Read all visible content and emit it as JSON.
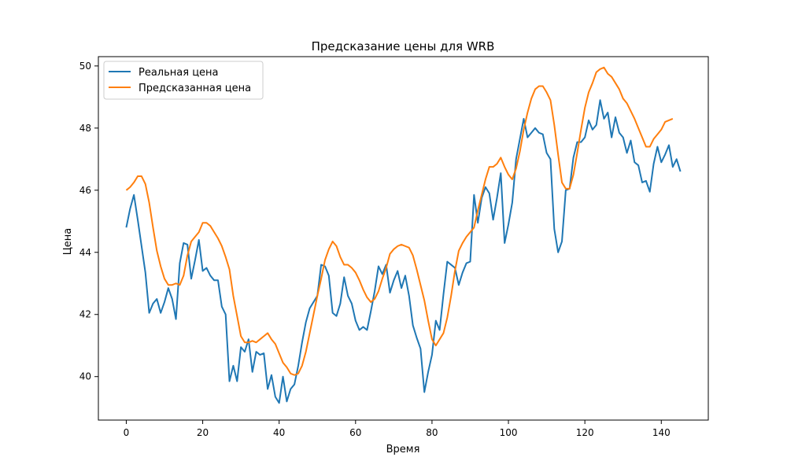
{
  "chart_data": {
    "type": "line",
    "title": "Предсказание цены для WRB",
    "xlabel": "Время",
    "ylabel": "Цена",
    "xlim": [
      -7.3,
      152.3
    ],
    "ylim": [
      38.6,
      50.3
    ],
    "xticks": [
      0,
      20,
      40,
      60,
      80,
      100,
      120,
      140
    ],
    "yticks": [
      40,
      42,
      44,
      46,
      48,
      50
    ],
    "grid": false,
    "legend_position": "top-left",
    "series": [
      {
        "name": "Реальная цена",
        "color": "#1f77b4",
        "values": [
          44.8,
          45.4,
          45.85,
          45.05,
          44.2,
          43.35,
          42.05,
          42.35,
          42.5,
          42.05,
          42.4,
          42.85,
          42.5,
          41.85,
          43.65,
          44.3,
          44.25,
          43.15,
          43.75,
          44.4,
          43.4,
          43.5,
          43.25,
          43.1,
          43.1,
          42.25,
          42.0,
          39.85,
          40.35,
          39.85,
          40.95,
          40.8,
          41.2,
          40.15,
          40.8,
          40.7,
          40.75,
          39.6,
          40.05,
          39.35,
          39.15,
          40.0,
          39.2,
          39.6,
          39.75,
          40.35,
          41.1,
          41.75,
          42.2,
          42.4,
          42.6,
          43.6,
          43.55,
          43.25,
          42.05,
          41.95,
          42.35,
          43.2,
          42.6,
          42.35,
          41.8,
          41.5,
          41.6,
          41.5,
          42.1,
          42.75,
          43.55,
          43.3,
          43.6,
          42.7,
          43.1,
          43.4,
          42.85,
          43.25,
          42.6,
          41.65,
          41.25,
          40.9,
          39.5,
          40.15,
          40.7,
          41.8,
          41.5,
          42.65,
          43.7,
          43.6,
          43.5,
          42.95,
          43.35,
          43.65,
          43.7,
          45.85,
          44.95,
          45.75,
          46.1,
          45.9,
          45.05,
          45.75,
          46.55,
          44.3,
          44.9,
          45.6,
          47.0,
          47.65,
          48.3,
          47.7,
          47.85,
          48.0,
          47.85,
          47.8,
          47.2,
          47.0,
          44.75,
          44.0,
          44.35,
          46.0,
          46.05,
          47.05,
          47.55,
          47.55,
          47.7,
          48.25,
          47.95,
          48.1,
          48.9,
          48.3,
          48.5,
          47.7,
          48.35,
          47.85,
          47.7,
          47.2,
          47.6,
          46.9,
          46.8,
          46.25,
          46.3,
          45.95,
          46.85,
          47.4,
          46.9,
          47.15,
          47.45,
          46.75,
          47.0,
          46.6
        ]
      },
      {
        "name": "Предсказанная цена",
        "color": "#ff7f0e",
        "values": [
          46.0,
          46.1,
          46.25,
          46.45,
          46.45,
          46.2,
          45.6,
          44.8,
          44.05,
          43.55,
          43.15,
          42.95,
          42.95,
          43.0,
          42.95,
          43.25,
          43.9,
          44.35,
          44.5,
          44.65,
          44.95,
          44.95,
          44.85,
          44.65,
          44.45,
          44.2,
          43.85,
          43.45,
          42.6,
          41.95,
          41.3,
          41.1,
          41.1,
          41.15,
          41.1,
          41.2,
          41.3,
          41.4,
          41.2,
          41.05,
          40.75,
          40.45,
          40.3,
          40.1,
          40.05,
          40.1,
          40.35,
          40.8,
          41.4,
          42.0,
          42.6,
          43.15,
          43.75,
          44.1,
          44.35,
          44.2,
          43.85,
          43.6,
          43.6,
          43.5,
          43.35,
          43.1,
          42.8,
          42.55,
          42.4,
          42.5,
          42.75,
          43.15,
          43.5,
          43.95,
          44.1,
          44.2,
          44.25,
          44.2,
          44.15,
          43.9,
          43.45,
          42.95,
          42.45,
          41.8,
          41.2,
          41.0,
          41.2,
          41.4,
          41.9,
          42.6,
          43.4,
          44.05,
          44.3,
          44.5,
          44.65,
          44.8,
          45.35,
          45.85,
          46.35,
          46.75,
          46.75,
          46.85,
          47.05,
          46.75,
          46.5,
          46.35,
          46.7,
          47.25,
          47.95,
          48.5,
          48.95,
          49.25,
          49.35,
          49.35,
          49.15,
          48.9,
          48.1,
          47.15,
          46.25,
          46.05,
          46.05,
          46.5,
          47.2,
          47.95,
          48.65,
          49.15,
          49.45,
          49.8,
          49.9,
          49.95,
          49.75,
          49.65,
          49.45,
          49.25,
          48.95,
          48.8,
          48.55,
          48.3,
          48.0,
          47.7,
          47.4,
          47.4,
          47.65,
          47.8,
          47.95,
          48.2,
          48.25,
          48.3
        ]
      }
    ]
  }
}
